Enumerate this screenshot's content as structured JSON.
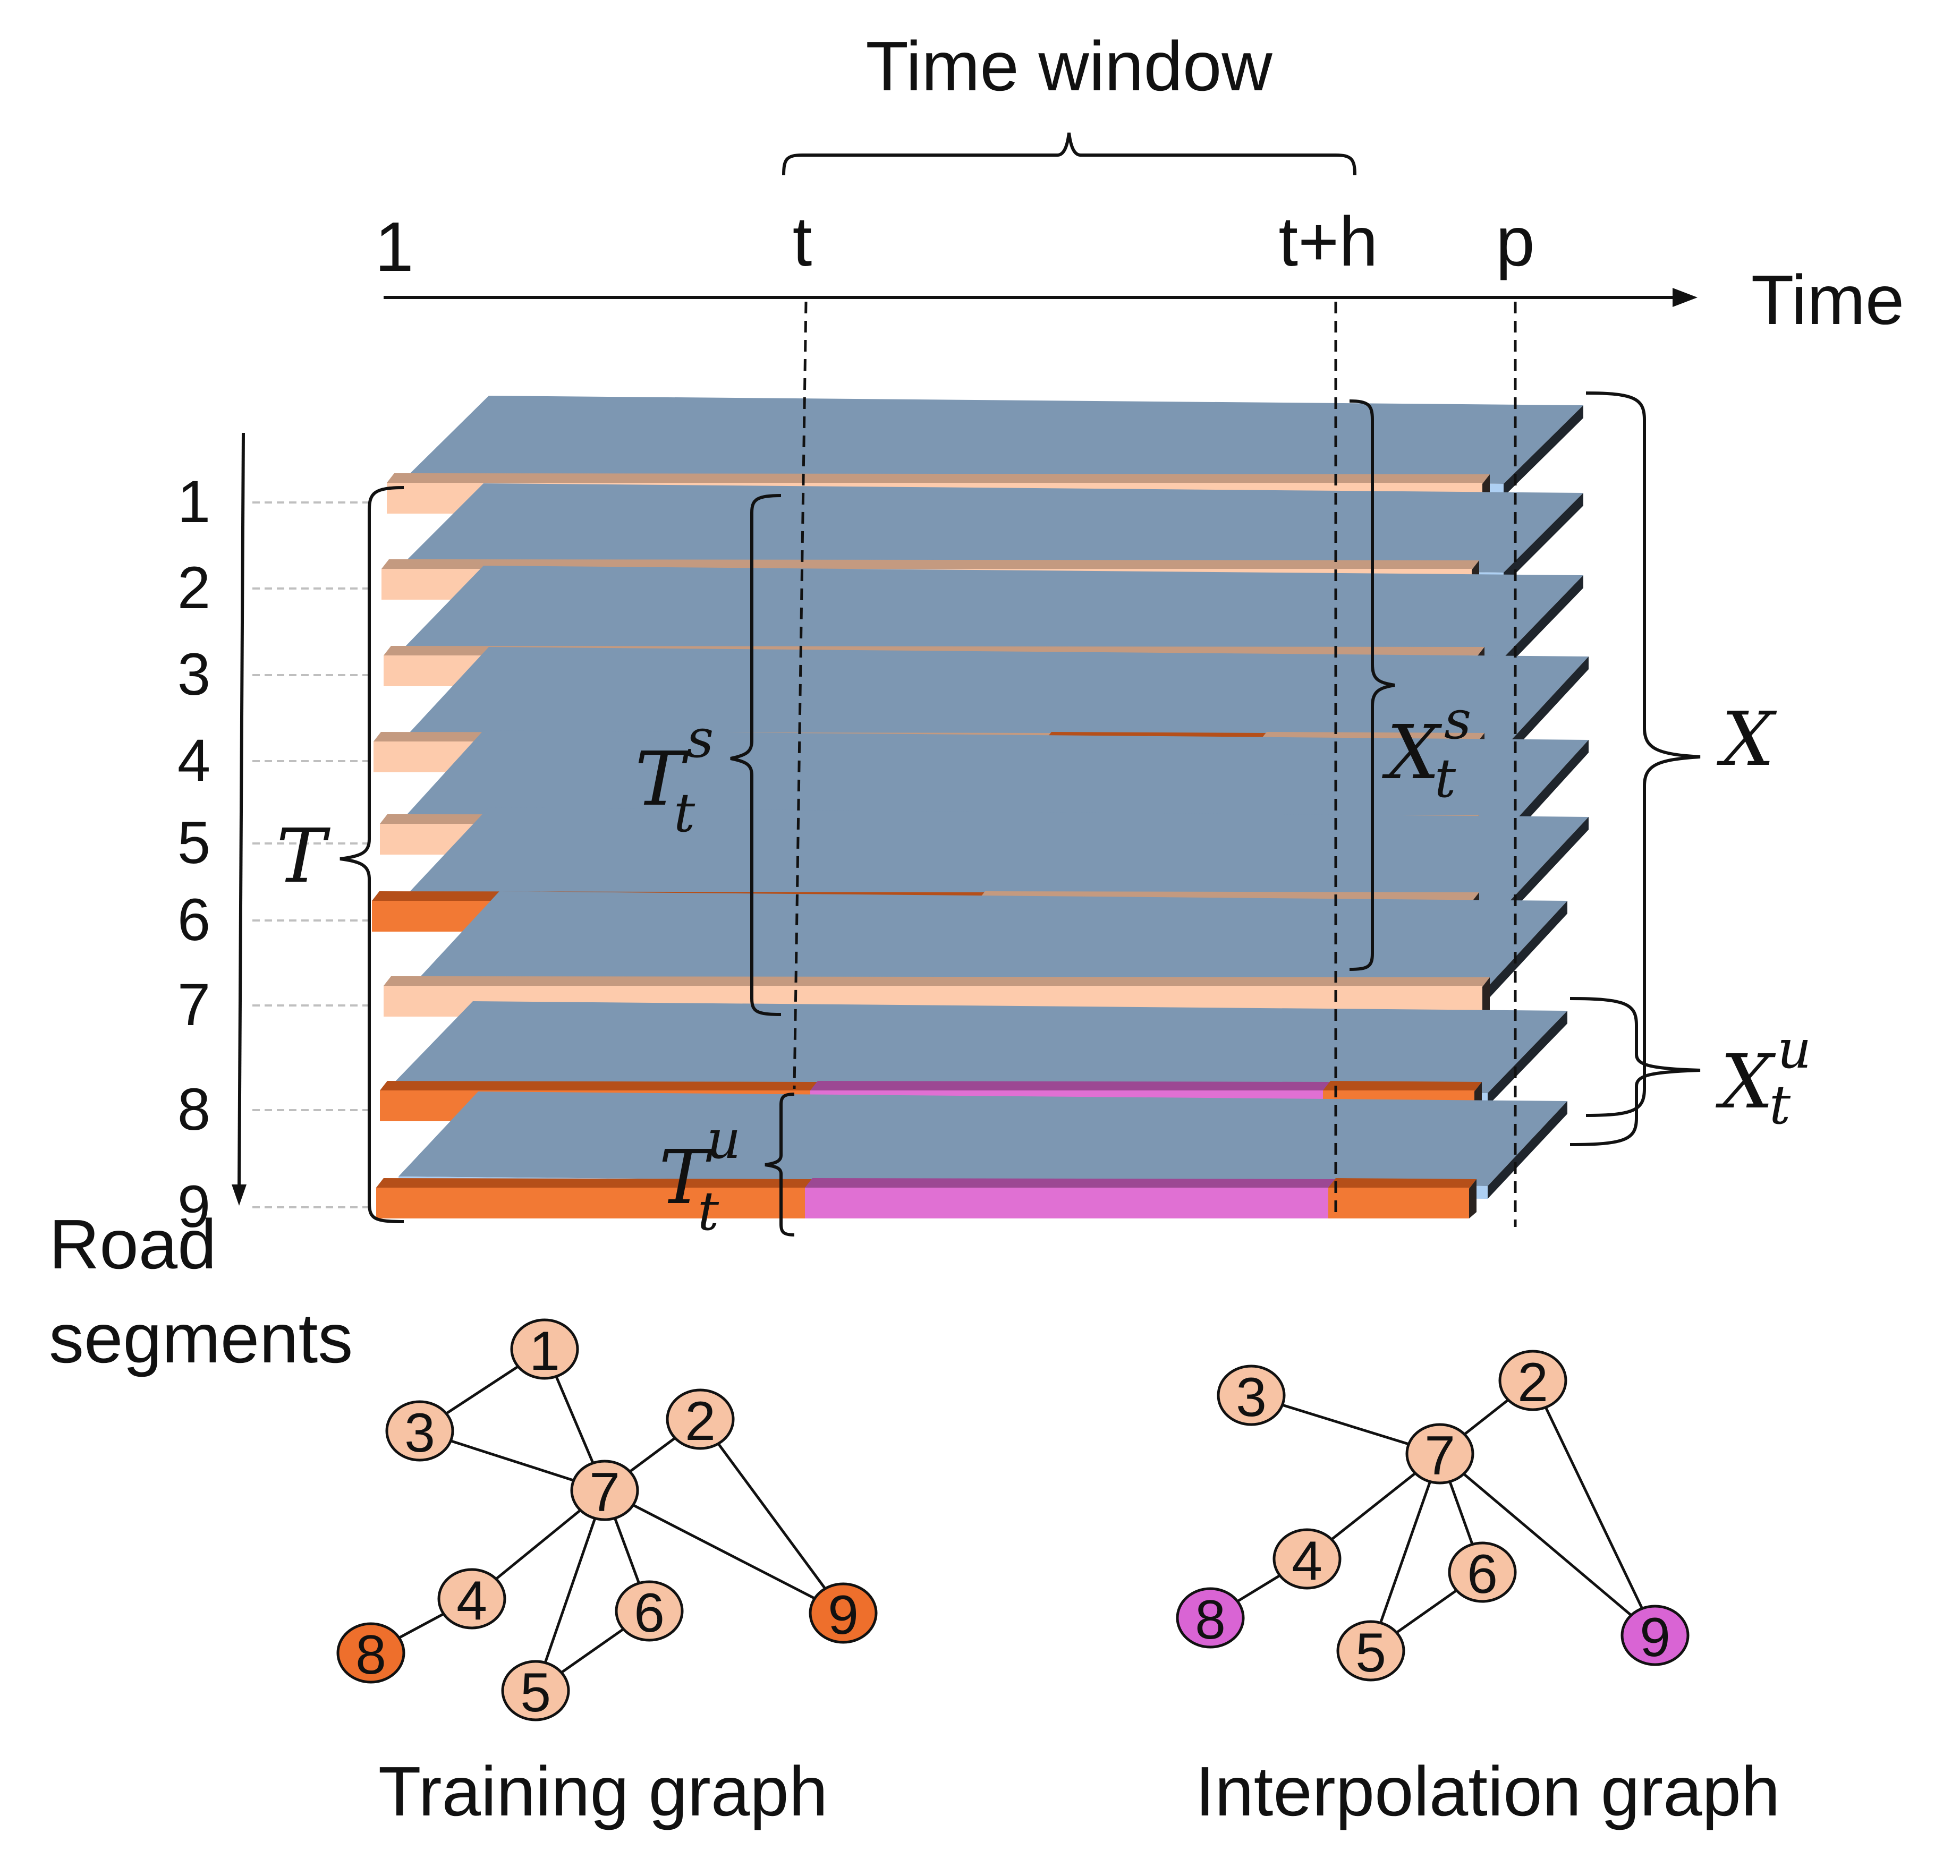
{
  "header": {
    "time_window": "Time window",
    "ticks": {
      "one": "1",
      "t": "t",
      "th": "t+h",
      "p": "p"
    },
    "time_axis": "Time"
  },
  "road_axis": {
    "line1": "Road",
    "line2": "segments",
    "rows": [
      "1",
      "2",
      "3",
      "4",
      "5",
      "6",
      "7",
      "8",
      "9"
    ]
  },
  "math_labels": {
    "T": {
      "base": "T"
    },
    "Tts": {
      "base": "T",
      "sub": "t",
      "sup": "s"
    },
    "Ttu": {
      "base": "T",
      "sub": "t",
      "sup": "u"
    },
    "Xts": {
      "base": "X",
      "sub": "t",
      "sup": "s"
    },
    "X": {
      "base": "X"
    },
    "Xtu": {
      "base": "X",
      "sub": "t",
      "sup": "u"
    }
  },
  "colors": {
    "plate_top": "#7d97b2",
    "plate_front": "#aed0f3",
    "plate_side": "#1f252c",
    "bar_light": "#fdcbac",
    "bar_light_top": "#c49a80",
    "bar_dark": "#f27934",
    "bar_dark_top": "#b54f19",
    "bar_magenta": "#e070d3",
    "bar_magenta_top": "#9c4893",
    "node_light": "#f7c3a4",
    "node_dark": "#ee6f2c",
    "node_magenta": "#d964d4"
  },
  "graphs": {
    "training": {
      "title": "Training graph",
      "nodes": [
        {
          "id": "1",
          "kind": "light"
        },
        {
          "id": "2",
          "kind": "light"
        },
        {
          "id": "3",
          "kind": "light"
        },
        {
          "id": "4",
          "kind": "light"
        },
        {
          "id": "5",
          "kind": "light"
        },
        {
          "id": "6",
          "kind": "light"
        },
        {
          "id": "7",
          "kind": "light"
        },
        {
          "id": "8",
          "kind": "dark"
        },
        {
          "id": "9",
          "kind": "dark"
        }
      ],
      "edges": [
        [
          "1",
          "3"
        ],
        [
          "1",
          "7"
        ],
        [
          "3",
          "7"
        ],
        [
          "2",
          "7"
        ],
        [
          "2",
          "9"
        ],
        [
          "7",
          "9"
        ],
        [
          "7",
          "4"
        ],
        [
          "4",
          "8"
        ],
        [
          "7",
          "5"
        ],
        [
          "7",
          "6"
        ],
        [
          "6",
          "5"
        ]
      ]
    },
    "interpolation": {
      "title": "Interpolation graph",
      "nodes": [
        {
          "id": "2",
          "kind": "light"
        },
        {
          "id": "3",
          "kind": "light"
        },
        {
          "id": "4",
          "kind": "light"
        },
        {
          "id": "5",
          "kind": "light"
        },
        {
          "id": "6",
          "kind": "light"
        },
        {
          "id": "7",
          "kind": "light"
        },
        {
          "id": "8",
          "kind": "magenta"
        },
        {
          "id": "9",
          "kind": "magenta"
        }
      ],
      "edges": [
        [
          "3",
          "7"
        ],
        [
          "2",
          "7"
        ],
        [
          "2",
          "9"
        ],
        [
          "7",
          "9"
        ],
        [
          "7",
          "4"
        ],
        [
          "4",
          "8"
        ],
        [
          "7",
          "5"
        ],
        [
          "7",
          "6"
        ],
        [
          "6",
          "5"
        ]
      ]
    }
  }
}
